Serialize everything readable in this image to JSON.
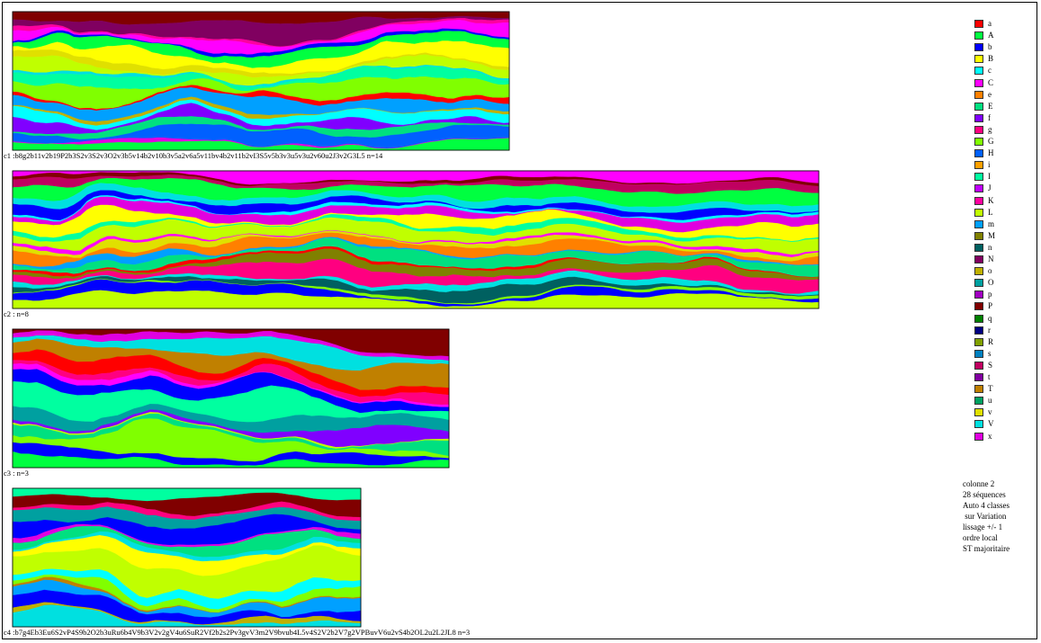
{
  "chart_data": {
    "type": "area",
    "info_lines": [
      "colonne 2",
      "28 séquences",
      "Auto 4 classes",
      " sur Variation",
      "lissage +/- 1",
      "ordre local",
      "ST majoritaire"
    ],
    "legend": [
      {
        "label": "a",
        "color": "#ff0000"
      },
      {
        "label": "A",
        "color": "#00ff40"
      },
      {
        "label": "b",
        "color": "#0000ff"
      },
      {
        "label": "B",
        "color": "#ffff00"
      },
      {
        "label": "c",
        "color": "#00ffff"
      },
      {
        "label": "C",
        "color": "#ff00ff"
      },
      {
        "label": "e",
        "color": "#ff8000"
      },
      {
        "label": "E",
        "color": "#00e080"
      },
      {
        "label": "f",
        "color": "#8000ff"
      },
      {
        "label": "g",
        "color": "#ff0080"
      },
      {
        "label": "G",
        "color": "#80ff00"
      },
      {
        "label": "H",
        "color": "#0060ff"
      },
      {
        "label": "i",
        "color": "#ffa000"
      },
      {
        "label": "I",
        "color": "#00ffa0"
      },
      {
        "label": "J",
        "color": "#c000ff"
      },
      {
        "label": "K",
        "color": "#ff00a0"
      },
      {
        "label": "L",
        "color": "#c0ff00"
      },
      {
        "label": "m",
        "color": "#00a0ff"
      },
      {
        "label": "M",
        "color": "#808000"
      },
      {
        "label": "n",
        "color": "#006060"
      },
      {
        "label": "N",
        "color": "#800060"
      },
      {
        "label": "o",
        "color": "#c0b000"
      },
      {
        "label": "O",
        "color": "#00a0a0"
      },
      {
        "label": "p",
        "color": "#a000c0"
      },
      {
        "label": "P",
        "color": "#800000"
      },
      {
        "label": "q",
        "color": "#008000"
      },
      {
        "label": "r",
        "color": "#000080"
      },
      {
        "label": "R",
        "color": "#80a000"
      },
      {
        "label": "s",
        "color": "#0080c0"
      },
      {
        "label": "S",
        "color": "#c00060"
      },
      {
        "label": "t",
        "color": "#8000a0"
      },
      {
        "label": "T",
        "color": "#c08000"
      },
      {
        "label": "u",
        "color": "#00a060"
      },
      {
        "label": "v",
        "color": "#e0e000"
      },
      {
        "label": "V",
        "color": "#00e0e0"
      },
      {
        "label": "x",
        "color": "#e000e0"
      }
    ],
    "panels": [
      {
        "caption": "c1 :b8g2b11v2b19P2b3S2v3S2v3O2v3b5v14b2v10b3v5a2v6a5v11bv4b2v11b2vI3S5v5b3v3u5v3u2v60u2J3v2G3L5 n=14",
        "series": [
          "P",
          "N",
          "K",
          "C",
          "b",
          "A",
          "B",
          "v",
          "L",
          "V",
          "I",
          "G",
          "a",
          "m",
          "o",
          "c",
          "f",
          "E",
          "H",
          "x",
          "A"
        ],
        "seed": 7
      },
      {
        "caption": "c2 : n=8",
        "series": [
          "C",
          "P",
          "S",
          "A",
          "V",
          "b",
          "c",
          "x",
          "B",
          "I",
          "L",
          "C",
          "v",
          "e",
          "m",
          "E",
          "a",
          "M",
          "g",
          "V",
          "n",
          "G",
          "b",
          "L"
        ],
        "seed": 13
      },
      {
        "caption": "c3 : n=3",
        "series": [
          "P",
          "x",
          "V",
          "T",
          "a",
          "g",
          "C",
          "b",
          "I",
          "O",
          "f",
          "L",
          "E",
          "G",
          "b",
          "A"
        ],
        "seed": 23
      },
      {
        "caption": "c4 :b7g4Eb3Eu6S2vP4S9b2O2b3uRu6b4V9b3V2v2gV4u6SuR2Vf2b2s2Pv3gvV3m2V9bvub4L5v4S2V2b2V7g2VPBuvV6u2vS4b2OL2u2L2JL8 n=3",
        "series": [
          "I",
          "P",
          "g",
          "O",
          "b",
          "x",
          "E",
          "V",
          "B",
          "L",
          "c",
          "G",
          "T",
          "m",
          "b",
          "o",
          "V"
        ],
        "seed": 41
      }
    ]
  }
}
